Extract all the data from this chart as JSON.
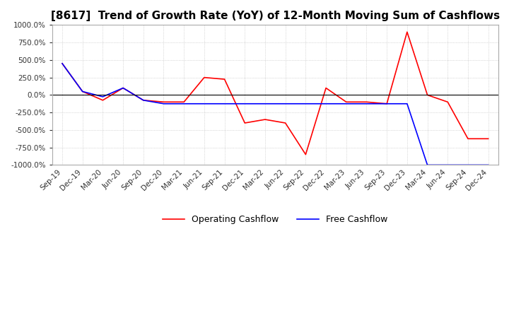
{
  "title": "[8617]  Trend of Growth Rate (YoY) of 12-Month Moving Sum of Cashflows",
  "title_fontsize": 11,
  "ylim": [
    -1000,
    1000
  ],
  "yticks": [
    -1000,
    -750,
    -500,
    -250,
    0,
    250,
    500,
    750,
    1000
  ],
  "operating_color": "#ff0000",
  "free_color": "#0000ff",
  "background_color": "#ffffff",
  "grid_color": "#bbbbbb",
  "grid_style": "dotted",
  "legend_labels": [
    "Operating Cashflow",
    "Free Cashflow"
  ],
  "x_labels": [
    "Sep-19",
    "Dec-19",
    "Mar-20",
    "Jun-20",
    "Sep-20",
    "Dec-20",
    "Mar-21",
    "Jun-21",
    "Sep-21",
    "Dec-21",
    "Mar-22",
    "Jun-22",
    "Sep-22",
    "Dec-22",
    "Mar-23",
    "Jun-23",
    "Sep-23",
    "Dec-23",
    "Mar-24",
    "Jun-24",
    "Sep-24",
    "Dec-24"
  ],
  "operating_cashflow": [
    450,
    50,
    -75,
    100,
    -75,
    -100,
    -100,
    250,
    225,
    -400,
    -350,
    -400,
    -850,
    100,
    -100,
    -100,
    -125,
    900,
    0,
    -100,
    -625,
    -625
  ],
  "free_cashflow": [
    450,
    50,
    -25,
    100,
    -75,
    -125,
    -125,
    -125,
    -125,
    -125,
    -125,
    -125,
    -125,
    -125,
    -125,
    -125,
    -125,
    -125,
    -1000,
    -1000,
    -1000,
    -1000
  ]
}
